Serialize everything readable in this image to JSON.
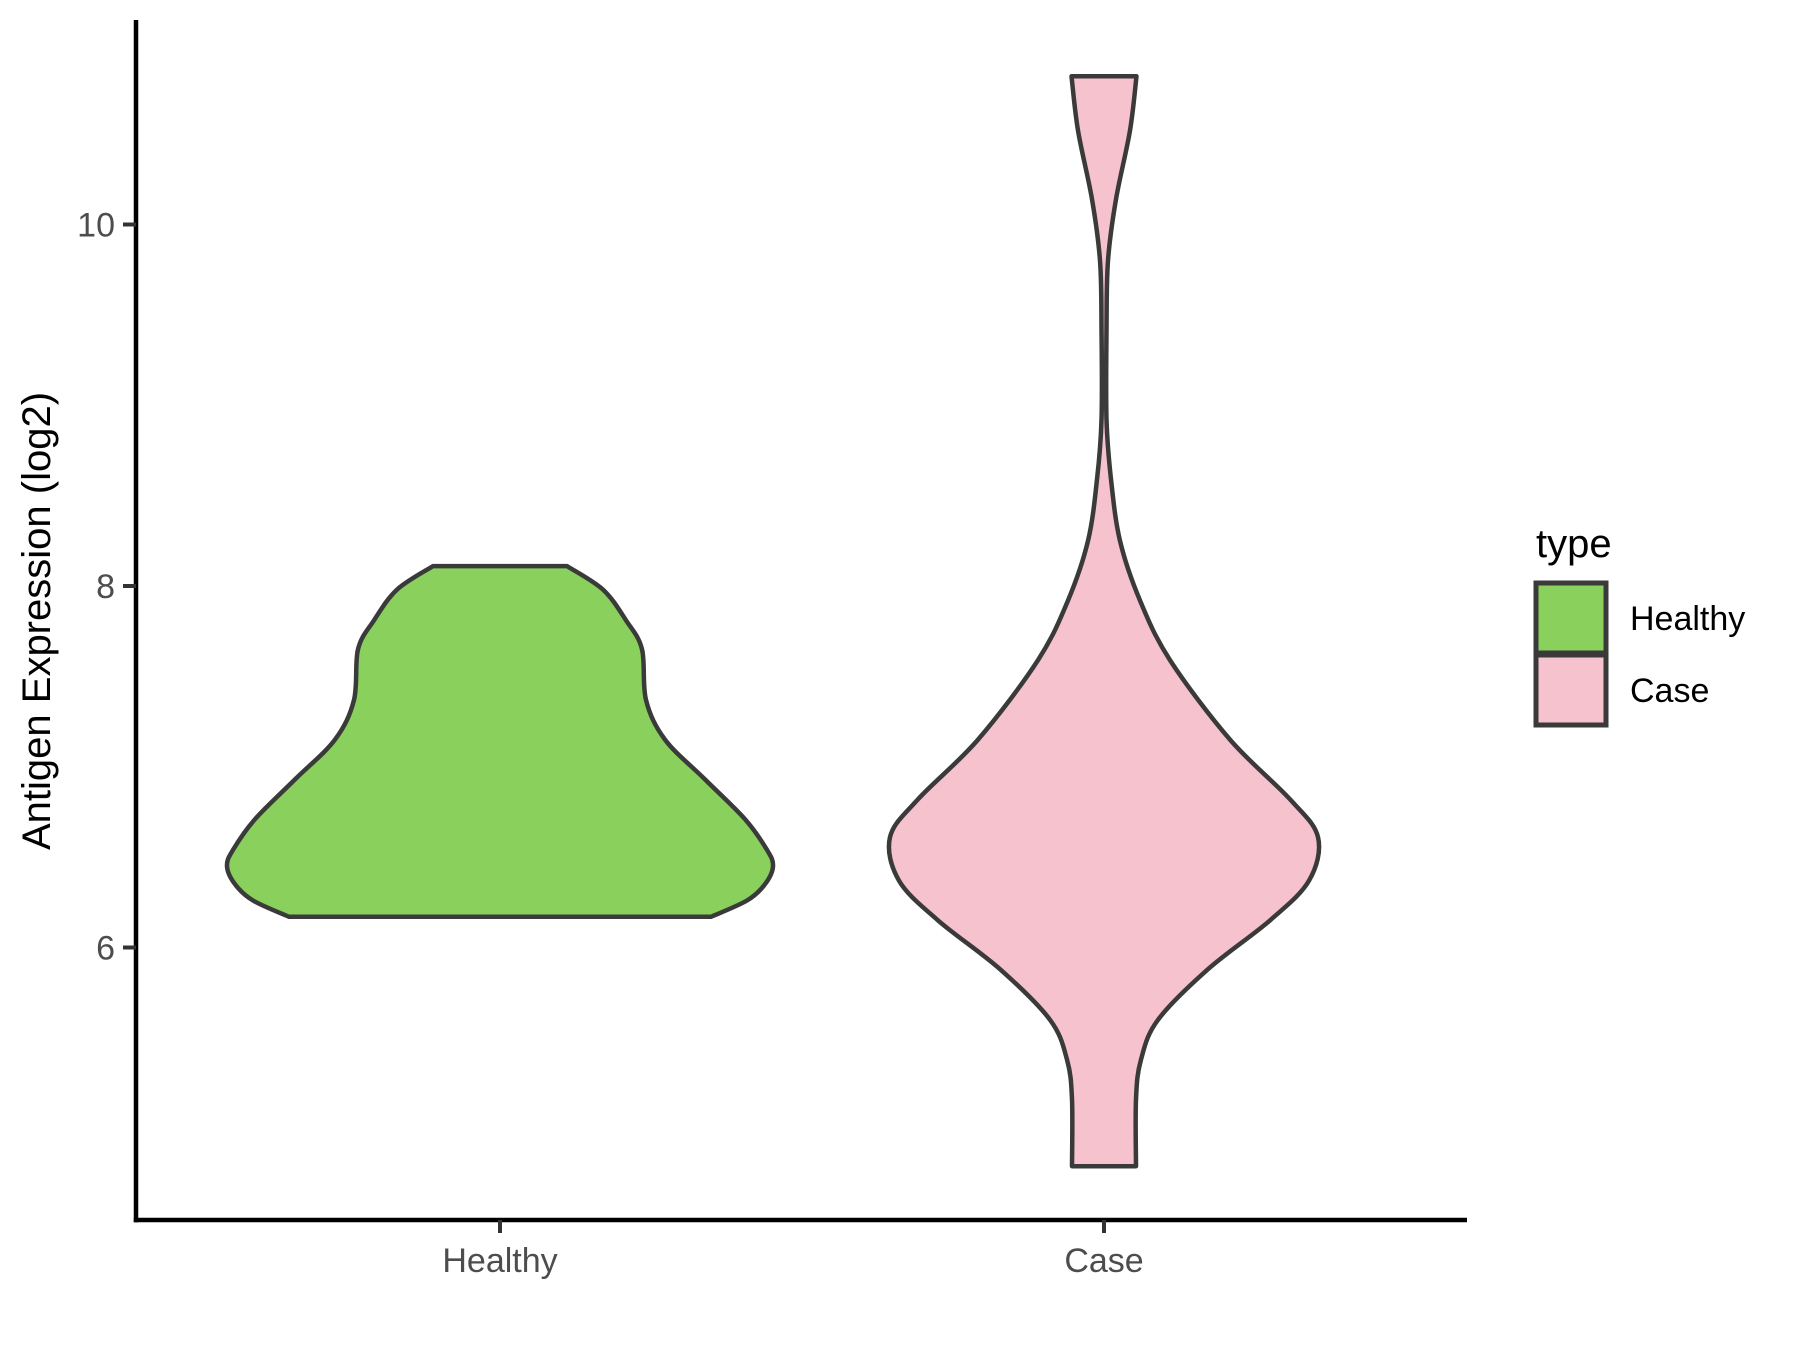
{
  "figure": {
    "background": "#FFFFFF",
    "outline_color": "#3A3A3A",
    "axis_line_color": "#000000",
    "tick_mark_color": "#333333",
    "tick_label_color": "#4D4D4D",
    "title_text_color": "#000000"
  },
  "chart_data": {
    "type": "violin",
    "title": "",
    "xlabel": "",
    "ylabel": "Antigen Expression (log2)",
    "categories": [
      "Healthy",
      "Case"
    ],
    "y_ticks": [
      6,
      8,
      10
    ],
    "y_axis_range": [
      4.48,
      11.12
    ],
    "grid": "off",
    "legend_position": "right",
    "series": [
      {
        "name": "Healthy",
        "fill": "#89D05C",
        "min_value": 6.17,
        "max_value": 8.11,
        "peak_value": 6.45,
        "profile": [
          [
            8.11,
            67
          ],
          [
            7.98,
            103
          ],
          [
            7.81,
            126
          ],
          [
            7.65,
            142
          ],
          [
            7.37,
            146
          ],
          [
            7.15,
            165
          ],
          [
            6.93,
            205
          ],
          [
            6.71,
            245
          ],
          [
            6.54,
            267
          ],
          [
            6.45,
            273
          ],
          [
            6.35,
            265
          ],
          [
            6.26,
            247
          ],
          [
            6.17,
            211
          ]
        ]
      },
      {
        "name": "Case",
        "fill": "#F6C2CE",
        "min_value": 4.79,
        "max_value": 10.82,
        "peak_value": 6.61,
        "profile": [
          [
            10.82,
            32.5
          ],
          [
            10.52,
            26
          ],
          [
            10.14,
            12
          ],
          [
            9.8,
            4
          ],
          [
            9.42,
            2.5
          ],
          [
            8.92,
            2.5
          ],
          [
            8.59,
            7
          ],
          [
            8.25,
            16
          ],
          [
            7.92,
            36
          ],
          [
            7.59,
            66
          ],
          [
            7.15,
            126
          ],
          [
            6.82,
            186
          ],
          [
            6.61,
            214
          ],
          [
            6.37,
            205
          ],
          [
            6.15,
            166
          ],
          [
            5.88,
            104
          ],
          [
            5.6,
            54
          ],
          [
            5.38,
            37
          ],
          [
            5.16,
            32
          ],
          [
            4.79,
            32
          ]
        ]
      }
    ],
    "legend": {
      "title": "type",
      "items": [
        {
          "label": "Healthy",
          "color": "#89D05C"
        },
        {
          "label": "Case",
          "color": "#F6C2CE"
        }
      ]
    }
  }
}
